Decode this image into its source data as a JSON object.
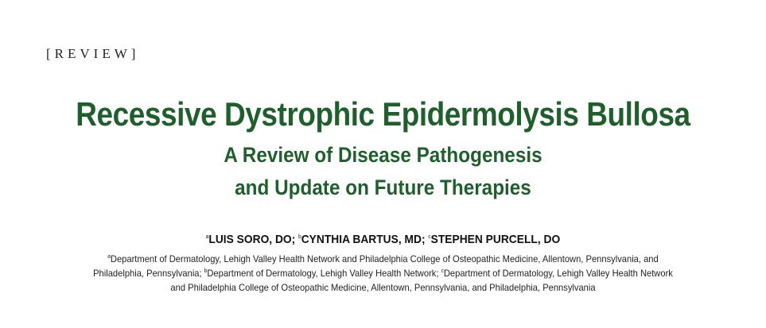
{
  "section_label": "[REVIEW]",
  "title": "Recessive Dystrophic Epidermolysis Bullosa",
  "subtitle": {
    "line1": "A Review of Disease Pathogenesis",
    "line2": "and Update on Future Therapies"
  },
  "authors": [
    {
      "sup": "a",
      "name": "LUIS SORO, DO;"
    },
    {
      "sup": "b",
      "name": "CYNTHIA BARTUS, MD;"
    },
    {
      "sup": "c",
      "name": "STEPHEN PURCELL, DO"
    }
  ],
  "affiliations": {
    "line1_sup": "a",
    "line1": "Department of Dermatology, Lehigh Valley Health Network and Philadelphia College of Osteopathic Medicine, Allentown, Pennsylvania, and",
    "line2_a": "Philadelphia, Pennsylvania;",
    "line2_sup_b": "b",
    "line2_b": "Department of Dermatology, Lehigh Valley Health Network;",
    "line2_sup_c": "c",
    "line2_c": "Department of Dermatology, Lehigh Valley Health Network",
    "line3": "and Philadelphia College of Osteopathic Medicine, Allentown, Pennsylvania, and Philadelphia, Pennsylvania"
  },
  "colors": {
    "title_green": "#1e5f2c"
  }
}
